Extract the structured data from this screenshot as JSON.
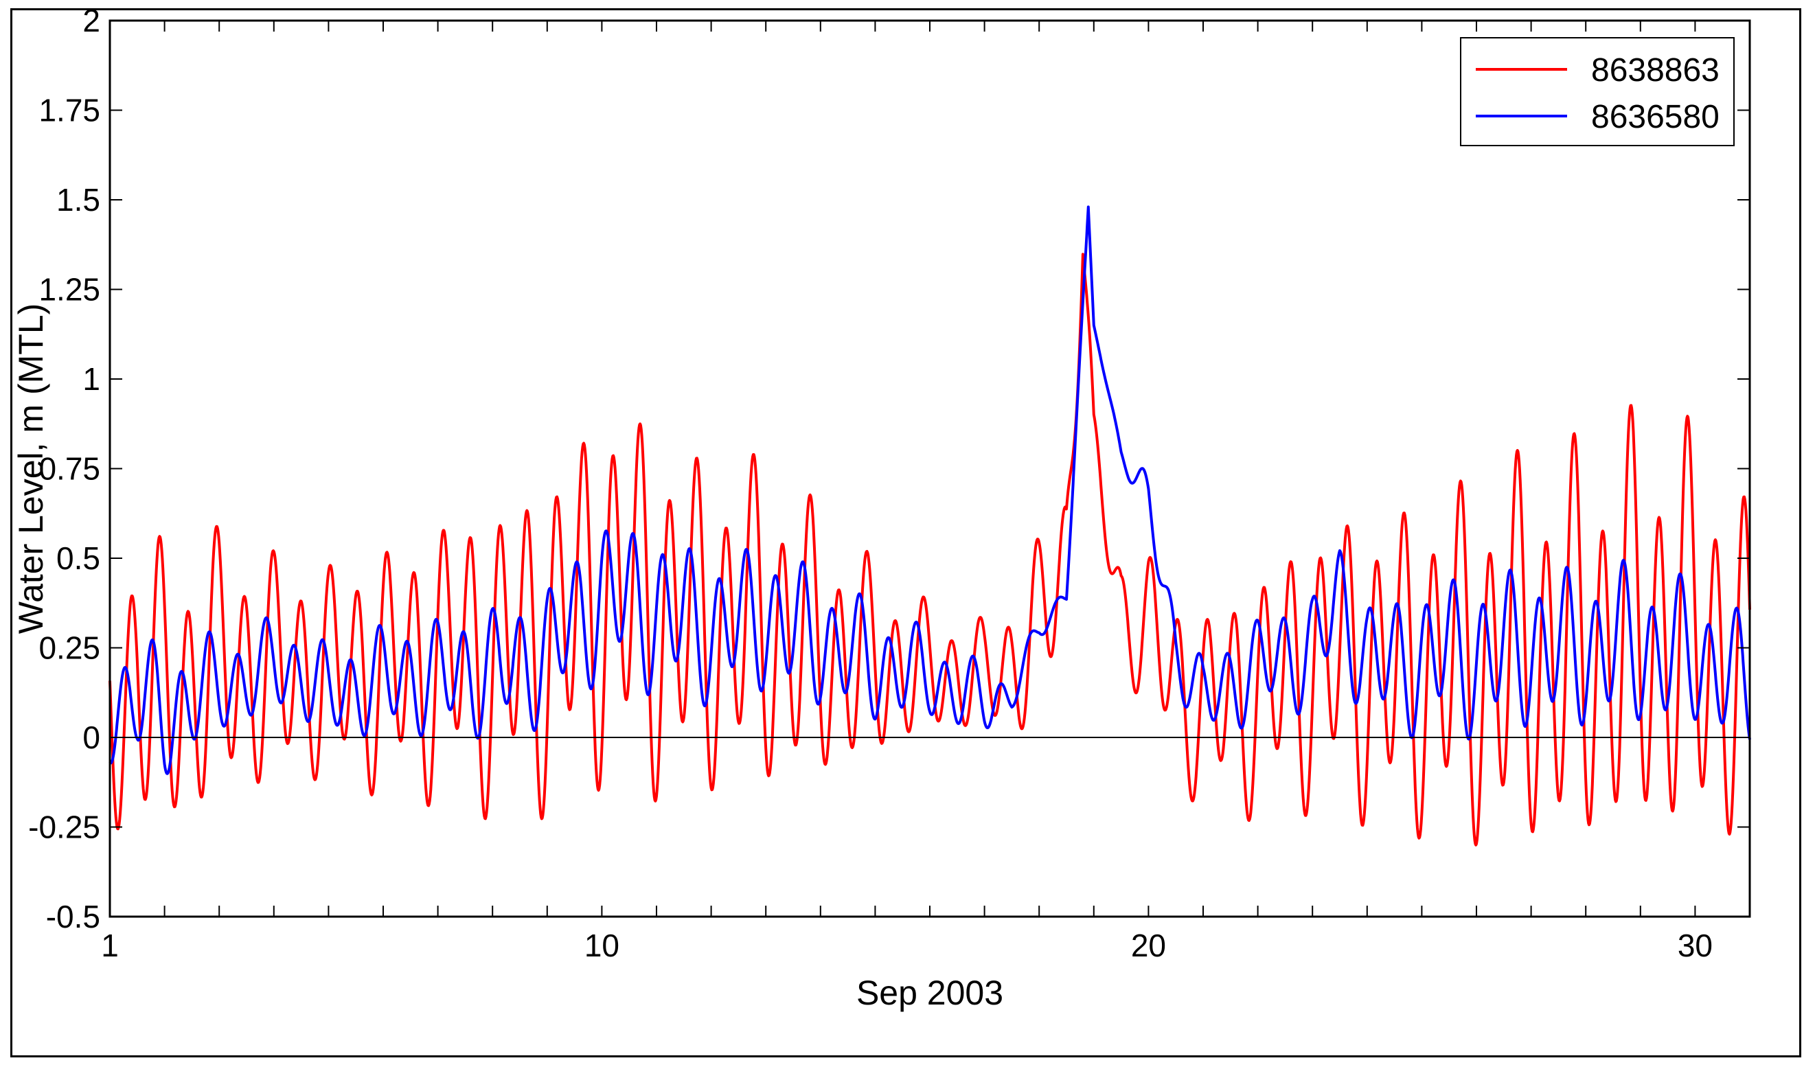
{
  "chart_data": {
    "type": "line",
    "title": "",
    "xlabel": "Sep 2003",
    "ylabel": "Water Level, m (MTL)",
    "xlim": [
      1,
      31
    ],
    "ylim": [
      -0.5,
      2
    ],
    "x_ticks_labeled": [
      1,
      10,
      20,
      30
    ],
    "x_minor_ticks_every_days": 1,
    "y_ticks": [
      -0.5,
      -0.25,
      0,
      0.25,
      0.5,
      0.75,
      1,
      1.25,
      1.5,
      1.75,
      2
    ],
    "y_tick_labels": [
      "-0.5",
      "-0.25",
      "0",
      "0.25",
      "0.5",
      "0.75",
      "1",
      "1.25",
      "1.5",
      "1.75",
      "2"
    ],
    "zero_line": true,
    "grid": false,
    "legend_position": "top-right",
    "series": [
      {
        "name": "8638863",
        "color": "#ff0000",
        "x": [
          1.0,
          1.5,
          2.0,
          2.5,
          3.0,
          3.5,
          4.0,
          4.5,
          5.0,
          5.5,
          6.0,
          6.5,
          7.0,
          7.5,
          8.0,
          8.5,
          9.0,
          9.5,
          10.0,
          10.5,
          11.0,
          11.5,
          12.0,
          12.5,
          13.0,
          13.5,
          14.0,
          14.5,
          15.0,
          15.5,
          16.0,
          16.5,
          17.0,
          17.5,
          18.0,
          18.5,
          18.8,
          19.0,
          19.5,
          20.0,
          20.5,
          21.0,
          21.5,
          22.0,
          22.5,
          23.0,
          23.5,
          24.0,
          24.5,
          25.0,
          25.5,
          26.0,
          26.5,
          27.0,
          27.5,
          28.0,
          28.5,
          29.0,
          29.5,
          30.0,
          30.5,
          31.0
        ],
        "y": [
          0.05,
          0.2,
          0.1,
          0.15,
          0.2,
          0.2,
          0.18,
          0.2,
          0.17,
          0.2,
          0.18,
          0.2,
          0.22,
          0.25,
          0.22,
          0.25,
          0.28,
          0.35,
          0.42,
          0.4,
          0.35,
          0.33,
          0.3,
          0.33,
          0.32,
          0.28,
          0.25,
          0.22,
          0.2,
          0.2,
          0.18,
          0.18,
          0.17,
          0.2,
          0.3,
          0.5,
          1.45,
          0.8,
          0.35,
          0.3,
          0.15,
          0.08,
          0.1,
          0.13,
          0.17,
          0.2,
          0.22,
          0.2,
          0.18,
          0.2,
          0.22,
          0.2,
          0.22,
          0.25,
          0.23,
          0.25,
          0.28,
          0.3,
          0.3,
          0.28,
          0.25,
          0.1
        ],
        "tidal_amplitude_m": [
          0.4,
          0.42,
          0.4,
          0.38,
          0.36,
          0.34,
          0.32,
          0.3,
          0.3,
          0.32,
          0.34,
          0.36,
          0.38,
          0.4,
          0.42,
          0.44,
          0.46,
          0.48,
          0.52,
          0.52,
          0.5,
          0.47,
          0.44,
          0.44,
          0.44,
          0.42,
          0.36,
          0.32,
          0.27,
          0.22,
          0.18,
          0.16,
          0.15,
          0.2,
          0.25,
          0.25,
          0.15,
          0.1,
          0.15,
          0.22,
          0.25,
          0.27,
          0.3,
          0.33,
          0.36,
          0.38,
          0.4,
          0.42,
          0.44,
          0.46,
          0.48,
          0.5,
          0.52,
          0.54,
          0.55,
          0.56,
          0.57,
          0.58,
          0.58,
          0.55,
          0.52,
          0.5
        ]
      },
      {
        "name": "8636580",
        "color": "#0000ff",
        "x": [
          1.0,
          1.5,
          2.0,
          2.5,
          3.0,
          3.5,
          4.0,
          4.5,
          5.0,
          5.5,
          6.0,
          6.5,
          7.0,
          7.5,
          8.0,
          8.5,
          9.0,
          9.5,
          10.0,
          10.5,
          11.0,
          11.5,
          12.0,
          12.5,
          13.0,
          13.5,
          14.0,
          14.5,
          15.0,
          15.5,
          16.0,
          16.5,
          17.0,
          17.5,
          18.0,
          18.5,
          18.9,
          19.0,
          19.5,
          20.0,
          20.5,
          21.0,
          21.5,
          22.0,
          22.5,
          23.0,
          23.5,
          24.0,
          24.5,
          25.0,
          25.5,
          26.0,
          26.5,
          27.0,
          27.5,
          28.0,
          28.5,
          29.0,
          29.5,
          30.0,
          30.5,
          31.0
        ],
        "y": [
          0.08,
          0.12,
          0.05,
          0.12,
          0.14,
          0.17,
          0.2,
          0.18,
          0.12,
          0.14,
          0.16,
          0.17,
          0.17,
          0.18,
          0.19,
          0.2,
          0.24,
          0.32,
          0.4,
          0.38,
          0.35,
          0.33,
          0.3,
          0.32,
          0.34,
          0.3,
          0.27,
          0.24,
          0.2,
          0.19,
          0.17,
          0.13,
          0.1,
          0.12,
          0.3,
          0.4,
          1.48,
          1.15,
          0.8,
          0.65,
          0.25,
          0.1,
          0.15,
          0.2,
          0.22,
          0.25,
          0.38,
          0.22,
          0.2,
          0.22,
          0.24,
          0.22,
          0.24,
          0.26,
          0.24,
          0.25,
          0.26,
          0.25,
          0.24,
          0.22,
          0.2,
          0.12
        ],
        "tidal_amplitude_m": [
          0.16,
          0.17,
          0.18,
          0.16,
          0.14,
          0.13,
          0.13,
          0.13,
          0.13,
          0.14,
          0.15,
          0.16,
          0.16,
          0.17,
          0.18,
          0.18,
          0.19,
          0.2,
          0.22,
          0.22,
          0.22,
          0.22,
          0.2,
          0.2,
          0.2,
          0.2,
          0.18,
          0.17,
          0.16,
          0.14,
          0.12,
          0.11,
          0.1,
          0.05,
          0.04,
          0.03,
          0.0,
          0.0,
          0.02,
          0.08,
          0.1,
          0.12,
          0.13,
          0.14,
          0.15,
          0.16,
          0.17,
          0.18,
          0.19,
          0.2,
          0.21,
          0.22,
          0.22,
          0.22,
          0.22,
          0.22,
          0.22,
          0.22,
          0.21,
          0.2,
          0.19,
          0.18
        ]
      }
    ]
  }
}
